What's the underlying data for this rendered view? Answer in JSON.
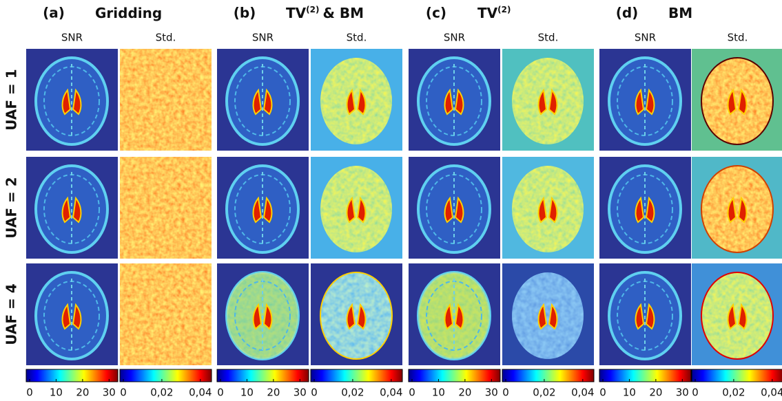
{
  "columns": [
    {
      "label": "(a)",
      "title": [
        {
          "text": "Gridding"
        }
      ],
      "images": [
        "SNR",
        "Std."
      ],
      "colorbars": [
        [
          "0",
          "10",
          "20",
          "30"
        ],
        [
          "0",
          "0,02",
          "0,04"
        ]
      ]
    },
    {
      "label": "(b)",
      "title": [
        {
          "text": "TV"
        },
        {
          "text": "(2)",
          "sup": true
        },
        {
          "text": "& BM"
        }
      ],
      "images": [
        "SNR",
        "Std."
      ],
      "colorbars": [
        [
          "0",
          "10",
          "20",
          "30"
        ],
        [
          "0",
          "0,02",
          "0,04"
        ]
      ]
    },
    {
      "label": "(c)",
      "title": [
        {
          "text": "TV"
        },
        {
          "text": "(2)",
          "sup": true
        }
      ],
      "images": [
        "SNR",
        "Std."
      ],
      "colorbars": [
        [
          "0",
          "10",
          "20",
          "30"
        ],
        [
          "0",
          "0,02",
          "0,04"
        ]
      ]
    },
    {
      "label": "(d)",
      "title": [
        {
          "text": "BM"
        }
      ],
      "images": [
        "SNR",
        "Std."
      ],
      "colorbars": [
        [
          "0",
          "10",
          "20",
          "30"
        ],
        [
          "0",
          "0,02",
          "0,04"
        ]
      ]
    }
  ],
  "rows": [
    "UAF = 1",
    "UAF = 2",
    "UAF = 4"
  ]
}
